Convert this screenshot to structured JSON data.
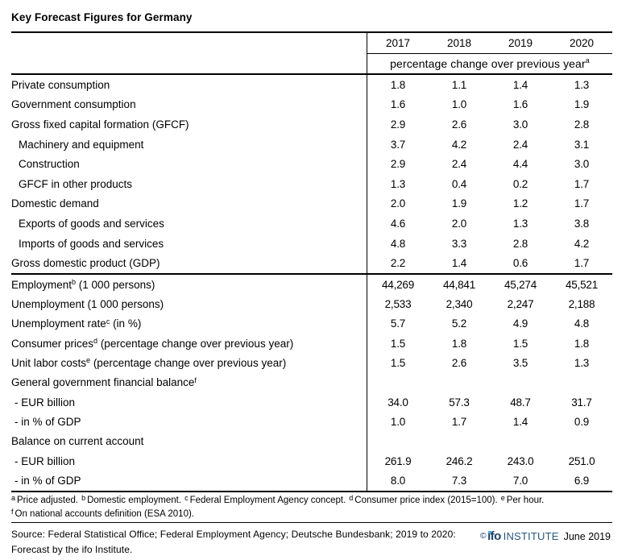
{
  "title": "Key Forecast Figures for Germany",
  "table": {
    "years": [
      "2017",
      "2018",
      "2019",
      "2020"
    ],
    "subheader": {
      "text": "percentage change over previous year",
      "sup": "a"
    },
    "sections": [
      {
        "rows": [
          {
            "pre": "Private consumption",
            "sup": "",
            "post": "",
            "indent": 0,
            "values": [
              "1.8",
              "1.1",
              "1.4",
              "1.3"
            ]
          },
          {
            "pre": "Government consumption",
            "sup": "",
            "post": "",
            "indent": 0,
            "values": [
              "1.6",
              "1.0",
              "1.6",
              "1.9"
            ]
          },
          {
            "pre": "Gross fixed capital formation (GFCF)",
            "sup": "",
            "post": "",
            "indent": 0,
            "values": [
              "2.9",
              "2.6",
              "3.0",
              "2.8"
            ]
          },
          {
            "pre": "Machinery and equipment",
            "sup": "",
            "post": "",
            "indent": 1,
            "values": [
              "3.7",
              "4.2",
              "2.4",
              "3.1"
            ]
          },
          {
            "pre": "Construction",
            "sup": "",
            "post": "",
            "indent": 1,
            "values": [
              "2.9",
              "2.4",
              "4.4",
              "3.0"
            ]
          },
          {
            "pre": "GFCF in other products",
            "sup": "",
            "post": "",
            "indent": 1,
            "values": [
              "1.3",
              "0.4",
              "0.2",
              "1.7"
            ]
          },
          {
            "pre": "Domestic demand",
            "sup": "",
            "post": "",
            "indent": 0,
            "values": [
              "2.0",
              "1.9",
              "1.2",
              "1.7"
            ]
          },
          {
            "pre": "Exports of goods and services",
            "sup": "",
            "post": "",
            "indent": 1,
            "values": [
              "4.6",
              "2.0",
              "1.3",
              "3.8"
            ]
          },
          {
            "pre": "Imports of goods and services",
            "sup": "",
            "post": "",
            "indent": 1,
            "values": [
              "4.8",
              "3.3",
              "2.8",
              "4.2"
            ]
          },
          {
            "pre": "Gross domestic product (GDP)",
            "sup": "",
            "post": "",
            "indent": 0,
            "values": [
              "2.2",
              "1.4",
              "0.6",
              "1.7"
            ]
          }
        ]
      },
      {
        "rows": [
          {
            "pre": "Employment",
            "sup": "b",
            "post": " (1 000 persons)",
            "indent": 0,
            "values": [
              "44,269",
              "44,841",
              "45,274",
              "45,521"
            ]
          },
          {
            "pre": "Unemployment (1 000 persons)",
            "sup": "",
            "post": "",
            "indent": 0,
            "values": [
              "2,533",
              "2,340",
              "2,247",
              "2,188"
            ]
          },
          {
            "pre": "Unemployment rate",
            "sup": "c",
            "post": " (in %)",
            "indent": 0,
            "values": [
              "5.7",
              "5.2",
              "4.9",
              "4.8"
            ]
          },
          {
            "pre": "Consumer prices",
            "sup": "d",
            "post": " (percentage change over previous year)",
            "indent": 0,
            "values": [
              "1.5",
              "1.8",
              "1.5",
              "1.8"
            ]
          },
          {
            "pre": "Unit labor costs",
            "sup": "e",
            "post": " (percentage change over previous year)",
            "indent": 0,
            "values": [
              "1.5",
              "2.6",
              "3.5",
              "1.3"
            ]
          },
          {
            "pre": "General government financial balance",
            "sup": "f",
            "post": "",
            "indent": 0,
            "values": [
              "",
              "",
              "",
              ""
            ]
          },
          {
            "pre": "- EUR billion",
            "sup": "",
            "post": "",
            "indent": 2,
            "values": [
              "34.0",
              "57.3",
              "48.7",
              "31.7"
            ]
          },
          {
            "pre": "- in % of GDP",
            "sup": "",
            "post": "",
            "indent": 2,
            "values": [
              "1.0",
              "1.7",
              "1.4",
              "0.9"
            ]
          },
          {
            "pre": "Balance on current account",
            "sup": "",
            "post": "",
            "indent": 0,
            "values": [
              "",
              "",
              "",
              ""
            ]
          },
          {
            "pre": "- EUR billion",
            "sup": "",
            "post": "",
            "indent": 2,
            "values": [
              "261.9",
              "246.2",
              "243.0",
              "251.0"
            ]
          },
          {
            "pre": "- in % of GDP",
            "sup": "",
            "post": "",
            "indent": 2,
            "values": [
              "8.0",
              "7.3",
              "7.0",
              "6.9"
            ]
          }
        ]
      }
    ]
  },
  "footnotes": [
    [
      {
        "sup": "a",
        "text": "Price adjusted."
      },
      {
        "sup": "b",
        "text": "Domestic employment."
      },
      {
        "sup": "c",
        "text": "Federal Employment Agency concept."
      },
      {
        "sup": "d",
        "text": "Consumer price index (2015=100)."
      },
      {
        "sup": "e",
        "text": "Per hour."
      }
    ],
    [
      {
        "sup": "f",
        "text": "On national accounts definition (ESA 2010)."
      }
    ]
  ],
  "source": {
    "lines": [
      "Source: Federal Statistical Office; Federal Employment Agency; Deutsche Bundesbank; 2019 to 2020:",
      "Forecast by the ifo Institute."
    ]
  },
  "logo": {
    "copyright": "©",
    "name": "ifo",
    "institute": "INSTITUTE",
    "date": "June 2019"
  },
  "colors": {
    "text": "#000000",
    "line": "#000000",
    "logo_navy": "#1b4168",
    "logo_light_blue": "#5aa7d6"
  }
}
